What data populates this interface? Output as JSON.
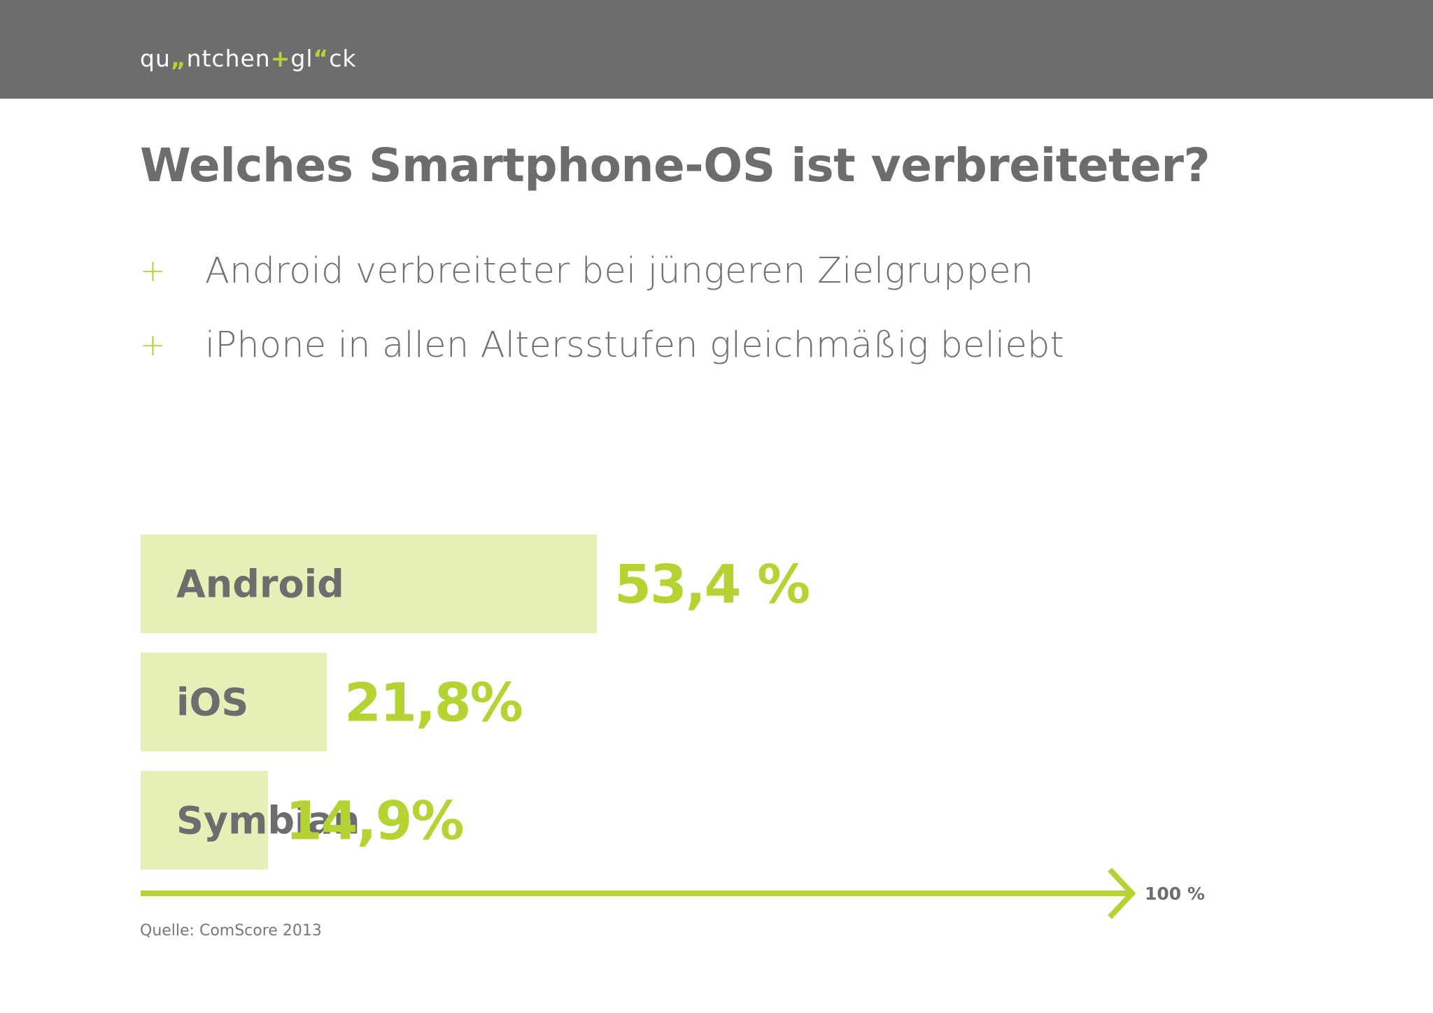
{
  "header": {
    "logo_parts": [
      "qu",
      "„",
      "ntchen",
      "+",
      "gl",
      "“",
      "ck"
    ]
  },
  "title": "Welches Smartphone-OS ist verbreiteter?",
  "bullets": [
    {
      "marker": "+",
      "text": "Android verbreiteter bei jüngeren Zielgruppen"
    },
    {
      "marker": "+",
      "text": "iPhone in allen Altersstufen gleichmäßig beliebt"
    }
  ],
  "colors": {
    "header": "#6d6d6e",
    "accent": "#b6d334",
    "bar_fill": "#e5f0b9",
    "text": "#6d6d6e"
  },
  "chart_data": {
    "type": "bar",
    "orientation": "horizontal",
    "categories": [
      "Android",
      "iOS",
      "Symbian"
    ],
    "values": [
      53.4,
      21.8,
      14.9
    ],
    "value_labels": [
      "53,4 %",
      "21,8%",
      "14,9%"
    ],
    "xlim": [
      0,
      100
    ],
    "axis_end_label": "100 %",
    "grid": false,
    "legend": "none"
  },
  "source": "Quelle: ComScore 2013"
}
